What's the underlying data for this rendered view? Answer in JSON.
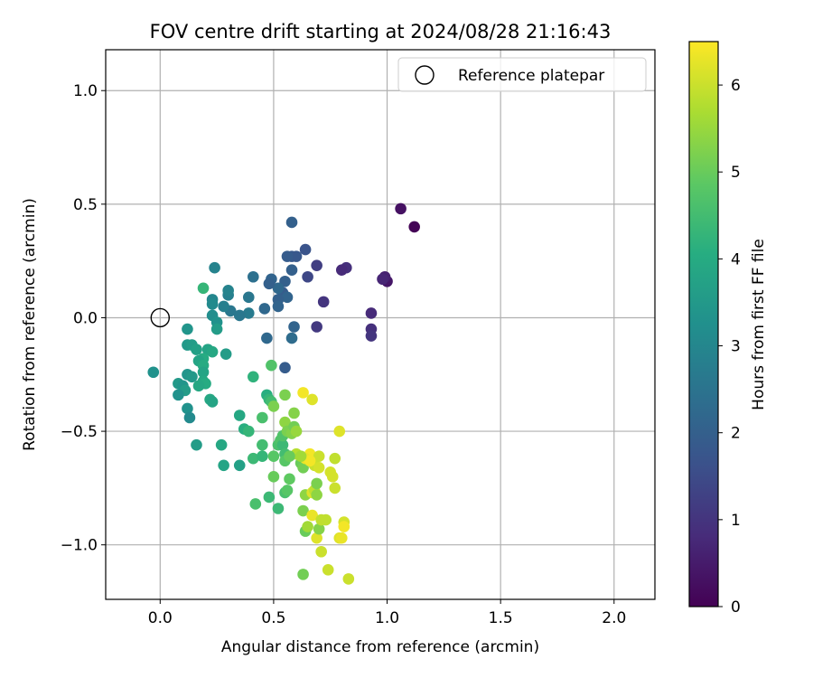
{
  "chart_data": {
    "type": "scatter",
    "title": "FOV centre drift starting at 2024/08/28 21:16:43",
    "xlabel": "Angular distance from reference (arcmin)",
    "ylabel": "Rotation from reference (arcmin)",
    "xlim": [
      -0.24,
      2.18
    ],
    "ylim": [
      -1.24,
      1.18
    ],
    "xticks": [
      0.0,
      0.5,
      1.0,
      1.5,
      2.0
    ],
    "xtick_labels": [
      "0.0",
      "0.5",
      "1.0",
      "1.5",
      "2.0"
    ],
    "yticks": [
      -1.0,
      -0.5,
      0.0,
      0.5,
      1.0
    ],
    "ytick_labels": [
      "−1.0",
      "−0.5",
      "0.0",
      "0.5",
      "1.0"
    ],
    "grid": true,
    "legend": {
      "placement": "top-right",
      "entries": [
        "Reference platepar"
      ]
    },
    "colorbar": {
      "label": "Hours from first FF file",
      "min": 0,
      "max": 6.5,
      "colormap": "viridis",
      "ticks": [
        0,
        1,
        2,
        3,
        4,
        5,
        6
      ],
      "tick_labels": [
        "0",
        "1",
        "2",
        "3",
        "4",
        "5",
        "6"
      ]
    },
    "reference_point": {
      "x": 0.0,
      "y": 0.0,
      "label": "Reference platepar"
    },
    "points": [
      {
        "x": 1.12,
        "y": 0.4,
        "t": 0.05
      },
      {
        "x": 1.06,
        "y": 0.48,
        "t": 0.3
      },
      {
        "x": 1.0,
        "y": 0.16,
        "t": 0.4
      },
      {
        "x": 0.99,
        "y": 0.18,
        "t": 0.6
      },
      {
        "x": 0.98,
        "y": 0.17,
        "t": 0.7
      },
      {
        "x": 0.93,
        "y": 0.02,
        "t": 0.8
      },
      {
        "x": 0.93,
        "y": -0.05,
        "t": 0.9
      },
      {
        "x": 0.93,
        "y": -0.08,
        "t": 1.0
      },
      {
        "x": 0.82,
        "y": 0.22,
        "t": 0.9
      },
      {
        "x": 0.8,
        "y": 0.21,
        "t": 0.8
      },
      {
        "x": 0.72,
        "y": 0.07,
        "t": 1.0
      },
      {
        "x": 0.69,
        "y": -0.04,
        "t": 1.1
      },
      {
        "x": 0.69,
        "y": 0.23,
        "t": 1.2
      },
      {
        "x": 0.65,
        "y": 0.18,
        "t": 1.4
      },
      {
        "x": 0.64,
        "y": 0.3,
        "t": 1.7
      },
      {
        "x": 0.6,
        "y": 0.27,
        "t": 1.8
      },
      {
        "x": 0.58,
        "y": 0.27,
        "t": 1.8
      },
      {
        "x": 0.56,
        "y": 0.27,
        "t": 1.9
      },
      {
        "x": 0.58,
        "y": 0.42,
        "t": 2.0
      },
      {
        "x": 0.58,
        "y": 0.21,
        "t": 2.0
      },
      {
        "x": 0.55,
        "y": 0.16,
        "t": 2.0
      },
      {
        "x": 0.54,
        "y": 0.11,
        "t": 1.9
      },
      {
        "x": 0.56,
        "y": 0.09,
        "t": 2.1
      },
      {
        "x": 0.52,
        "y": 0.08,
        "t": 2.0
      },
      {
        "x": 0.52,
        "y": 0.05,
        "t": 2.1
      },
      {
        "x": 0.52,
        "y": 0.13,
        "t": 2.2
      },
      {
        "x": 0.49,
        "y": 0.17,
        "t": 2.1
      },
      {
        "x": 0.48,
        "y": 0.15,
        "t": 2.0
      },
      {
        "x": 0.46,
        "y": 0.04,
        "t": 2.2
      },
      {
        "x": 0.59,
        "y": -0.04,
        "t": 2.1
      },
      {
        "x": 0.58,
        "y": -0.09,
        "t": 2.3
      },
      {
        "x": 0.47,
        "y": -0.09,
        "t": 2.2
      },
      {
        "x": 0.55,
        "y": -0.22,
        "t": 1.9
      },
      {
        "x": 0.41,
        "y": 0.18,
        "t": 2.4
      },
      {
        "x": 0.39,
        "y": 0.09,
        "t": 2.6
      },
      {
        "x": 0.39,
        "y": 0.02,
        "t": 2.7
      },
      {
        "x": 0.35,
        "y": 0.01,
        "t": 2.6
      },
      {
        "x": 0.31,
        "y": 0.03,
        "t": 2.6
      },
      {
        "x": 0.3,
        "y": 0.1,
        "t": 2.8
      },
      {
        "x": 0.3,
        "y": 0.12,
        "t": 2.9
      },
      {
        "x": 0.28,
        "y": 0.05,
        "t": 2.8
      },
      {
        "x": 0.24,
        "y": 0.22,
        "t": 2.9
      },
      {
        "x": 0.23,
        "y": 0.08,
        "t": 3.0
      },
      {
        "x": 0.23,
        "y": 0.06,
        "t": 3.1
      },
      {
        "x": 0.23,
        "y": 0.01,
        "t": 3.2
      },
      {
        "x": 0.25,
        "y": -0.02,
        "t": 3.3
      },
      {
        "x": 0.25,
        "y": -0.05,
        "t": 3.6
      },
      {
        "x": 0.19,
        "y": 0.13,
        "t": 4.3
      },
      {
        "x": 0.12,
        "y": -0.05,
        "t": 3.4
      },
      {
        "x": 0.12,
        "y": -0.12,
        "t": 3.5
      },
      {
        "x": 0.14,
        "y": -0.12,
        "t": 3.6
      },
      {
        "x": 0.16,
        "y": -0.14,
        "t": 3.7
      },
      {
        "x": 0.21,
        "y": -0.14,
        "t": 3.8
      },
      {
        "x": 0.23,
        "y": -0.15,
        "t": 3.9
      },
      {
        "x": 0.19,
        "y": -0.18,
        "t": 4.0
      },
      {
        "x": 0.17,
        "y": -0.19,
        "t": 3.8
      },
      {
        "x": 0.29,
        "y": -0.16,
        "t": 3.6
      },
      {
        "x": -0.03,
        "y": -0.24,
        "t": 3.3
      },
      {
        "x": 0.12,
        "y": -0.25,
        "t": 3.4
      },
      {
        "x": 0.14,
        "y": -0.26,
        "t": 3.5
      },
      {
        "x": 0.19,
        "y": -0.21,
        "t": 4.0
      },
      {
        "x": 0.19,
        "y": -0.24,
        "t": 3.8
      },
      {
        "x": 0.19,
        "y": -0.28,
        "t": 3.9
      },
      {
        "x": 0.2,
        "y": -0.29,
        "t": 4.0
      },
      {
        "x": 0.17,
        "y": -0.3,
        "t": 3.9
      },
      {
        "x": 0.08,
        "y": -0.29,
        "t": 3.5
      },
      {
        "x": 0.1,
        "y": -0.3,
        "t": 3.4
      },
      {
        "x": 0.11,
        "y": -0.32,
        "t": 3.6
      },
      {
        "x": 0.08,
        "y": -0.34,
        "t": 3.3
      },
      {
        "x": 0.22,
        "y": -0.36,
        "t": 3.9
      },
      {
        "x": 0.23,
        "y": -0.37,
        "t": 3.8
      },
      {
        "x": 0.12,
        "y": -0.4,
        "t": 3.3
      },
      {
        "x": 0.13,
        "y": -0.44,
        "t": 3.1
      },
      {
        "x": 0.16,
        "y": -0.56,
        "t": 3.6
      },
      {
        "x": 0.27,
        "y": -0.56,
        "t": 3.9
      },
      {
        "x": 0.28,
        "y": -0.65,
        "t": 3.8
      },
      {
        "x": 0.35,
        "y": -0.65,
        "t": 3.7
      },
      {
        "x": 0.35,
        "y": -0.43,
        "t": 3.9
      },
      {
        "x": 0.37,
        "y": -0.49,
        "t": 4.1
      },
      {
        "x": 0.39,
        "y": -0.5,
        "t": 4.3
      },
      {
        "x": 0.41,
        "y": -0.26,
        "t": 4.2
      },
      {
        "x": 0.41,
        "y": -0.62,
        "t": 4.4
      },
      {
        "x": 0.45,
        "y": -0.61,
        "t": 4.3
      },
      {
        "x": 0.45,
        "y": -0.56,
        "t": 4.5
      },
      {
        "x": 0.45,
        "y": -0.44,
        "t": 4.6
      },
      {
        "x": 0.47,
        "y": -0.34,
        "t": 4.1
      },
      {
        "x": 0.48,
        "y": -0.36,
        "t": 4.3
      },
      {
        "x": 0.49,
        "y": -0.37,
        "t": 4.5
      },
      {
        "x": 0.49,
        "y": -0.21,
        "t": 4.7
      },
      {
        "x": 0.5,
        "y": -0.39,
        "t": 5.2
      },
      {
        "x": 0.42,
        "y": -0.82,
        "t": 4.6
      },
      {
        "x": 0.48,
        "y": -0.79,
        "t": 4.4
      },
      {
        "x": 0.52,
        "y": -0.84,
        "t": 4.4
      },
      {
        "x": 0.5,
        "y": -0.7,
        "t": 5.0
      },
      {
        "x": 0.5,
        "y": -0.61,
        "t": 4.8
      },
      {
        "x": 0.52,
        "y": -0.56,
        "t": 4.6
      },
      {
        "x": 0.53,
        "y": -0.54,
        "t": 4.7
      },
      {
        "x": 0.54,
        "y": -0.56,
        "t": 4.4
      },
      {
        "x": 0.54,
        "y": -0.52,
        "t": 4.7
      },
      {
        "x": 0.55,
        "y": -0.6,
        "t": 4.5
      },
      {
        "x": 0.55,
        "y": -0.63,
        "t": 4.8
      },
      {
        "x": 0.55,
        "y": -0.77,
        "t": 4.6
      },
      {
        "x": 0.56,
        "y": -0.76,
        "t": 4.8
      },
      {
        "x": 0.57,
        "y": -0.71,
        "t": 4.9
      },
      {
        "x": 0.55,
        "y": -0.46,
        "t": 5.4
      },
      {
        "x": 0.56,
        "y": -0.5,
        "t": 5.2
      },
      {
        "x": 0.58,
        "y": -0.51,
        "t": 5.3
      },
      {
        "x": 0.59,
        "y": -0.48,
        "t": 5.1
      },
      {
        "x": 0.55,
        "y": -0.34,
        "t": 5.2
      },
      {
        "x": 0.59,
        "y": -0.42,
        "t": 5.3
      },
      {
        "x": 0.6,
        "y": -0.5,
        "t": 5.5
      },
      {
        "x": 0.6,
        "y": -0.6,
        "t": 5.8
      },
      {
        "x": 0.63,
        "y": -0.33,
        "t": 6.4
      },
      {
        "x": 0.67,
        "y": -0.36,
        "t": 6.2
      },
      {
        "x": 0.62,
        "y": -0.64,
        "t": 5.0
      },
      {
        "x": 0.63,
        "y": -0.66,
        "t": 5.1
      },
      {
        "x": 0.63,
        "y": -0.85,
        "t": 5.2
      },
      {
        "x": 0.64,
        "y": -0.78,
        "t": 5.4
      },
      {
        "x": 0.64,
        "y": -0.94,
        "t": 5.0
      },
      {
        "x": 0.65,
        "y": -0.92,
        "t": 5.6
      },
      {
        "x": 0.66,
        "y": -0.62,
        "t": 6.1
      },
      {
        "x": 0.66,
        "y": -0.6,
        "t": 6.4
      },
      {
        "x": 0.67,
        "y": -0.77,
        "t": 6.2
      },
      {
        "x": 0.67,
        "y": -0.87,
        "t": 6.3
      },
      {
        "x": 0.68,
        "y": -0.65,
        "t": 6.0
      },
      {
        "x": 0.68,
        "y": -0.76,
        "t": 5.9
      },
      {
        "x": 0.69,
        "y": -0.73,
        "t": 5.2
      },
      {
        "x": 0.69,
        "y": -0.78,
        "t": 5.4
      },
      {
        "x": 0.69,
        "y": -0.97,
        "t": 6.2
      },
      {
        "x": 0.7,
        "y": -0.61,
        "t": 6.0
      },
      {
        "x": 0.7,
        "y": -0.66,
        "t": 6.1
      },
      {
        "x": 0.7,
        "y": -0.93,
        "t": 5.3
      },
      {
        "x": 0.71,
        "y": -0.89,
        "t": 5.9
      },
      {
        "x": 0.71,
        "y": -1.03,
        "t": 6.0
      },
      {
        "x": 0.73,
        "y": -0.89,
        "t": 5.9
      },
      {
        "x": 0.74,
        "y": -1.11,
        "t": 6.0
      },
      {
        "x": 0.75,
        "y": -0.68,
        "t": 6.1
      },
      {
        "x": 0.76,
        "y": -0.7,
        "t": 6.1
      },
      {
        "x": 0.77,
        "y": -0.62,
        "t": 5.9
      },
      {
        "x": 0.77,
        "y": -0.75,
        "t": 6.0
      },
      {
        "x": 0.79,
        "y": -0.5,
        "t": 6.2
      },
      {
        "x": 0.79,
        "y": -0.97,
        "t": 6.2
      },
      {
        "x": 0.8,
        "y": -0.97,
        "t": 6.3
      },
      {
        "x": 0.81,
        "y": -0.9,
        "t": 6.1
      },
      {
        "x": 0.81,
        "y": -0.92,
        "t": 6.4
      },
      {
        "x": 0.83,
        "y": -1.15,
        "t": 6.0
      },
      {
        "x": 0.63,
        "y": -1.13,
        "t": 5.1
      },
      {
        "x": 0.64,
        "y": -0.62,
        "t": 6.3
      },
      {
        "x": 0.66,
        "y": -0.63,
        "t": 6.4
      },
      {
        "x": 0.57,
        "y": -0.61,
        "t": 5.0
      },
      {
        "x": 0.62,
        "y": -0.61,
        "t": 5.6
      }
    ]
  }
}
